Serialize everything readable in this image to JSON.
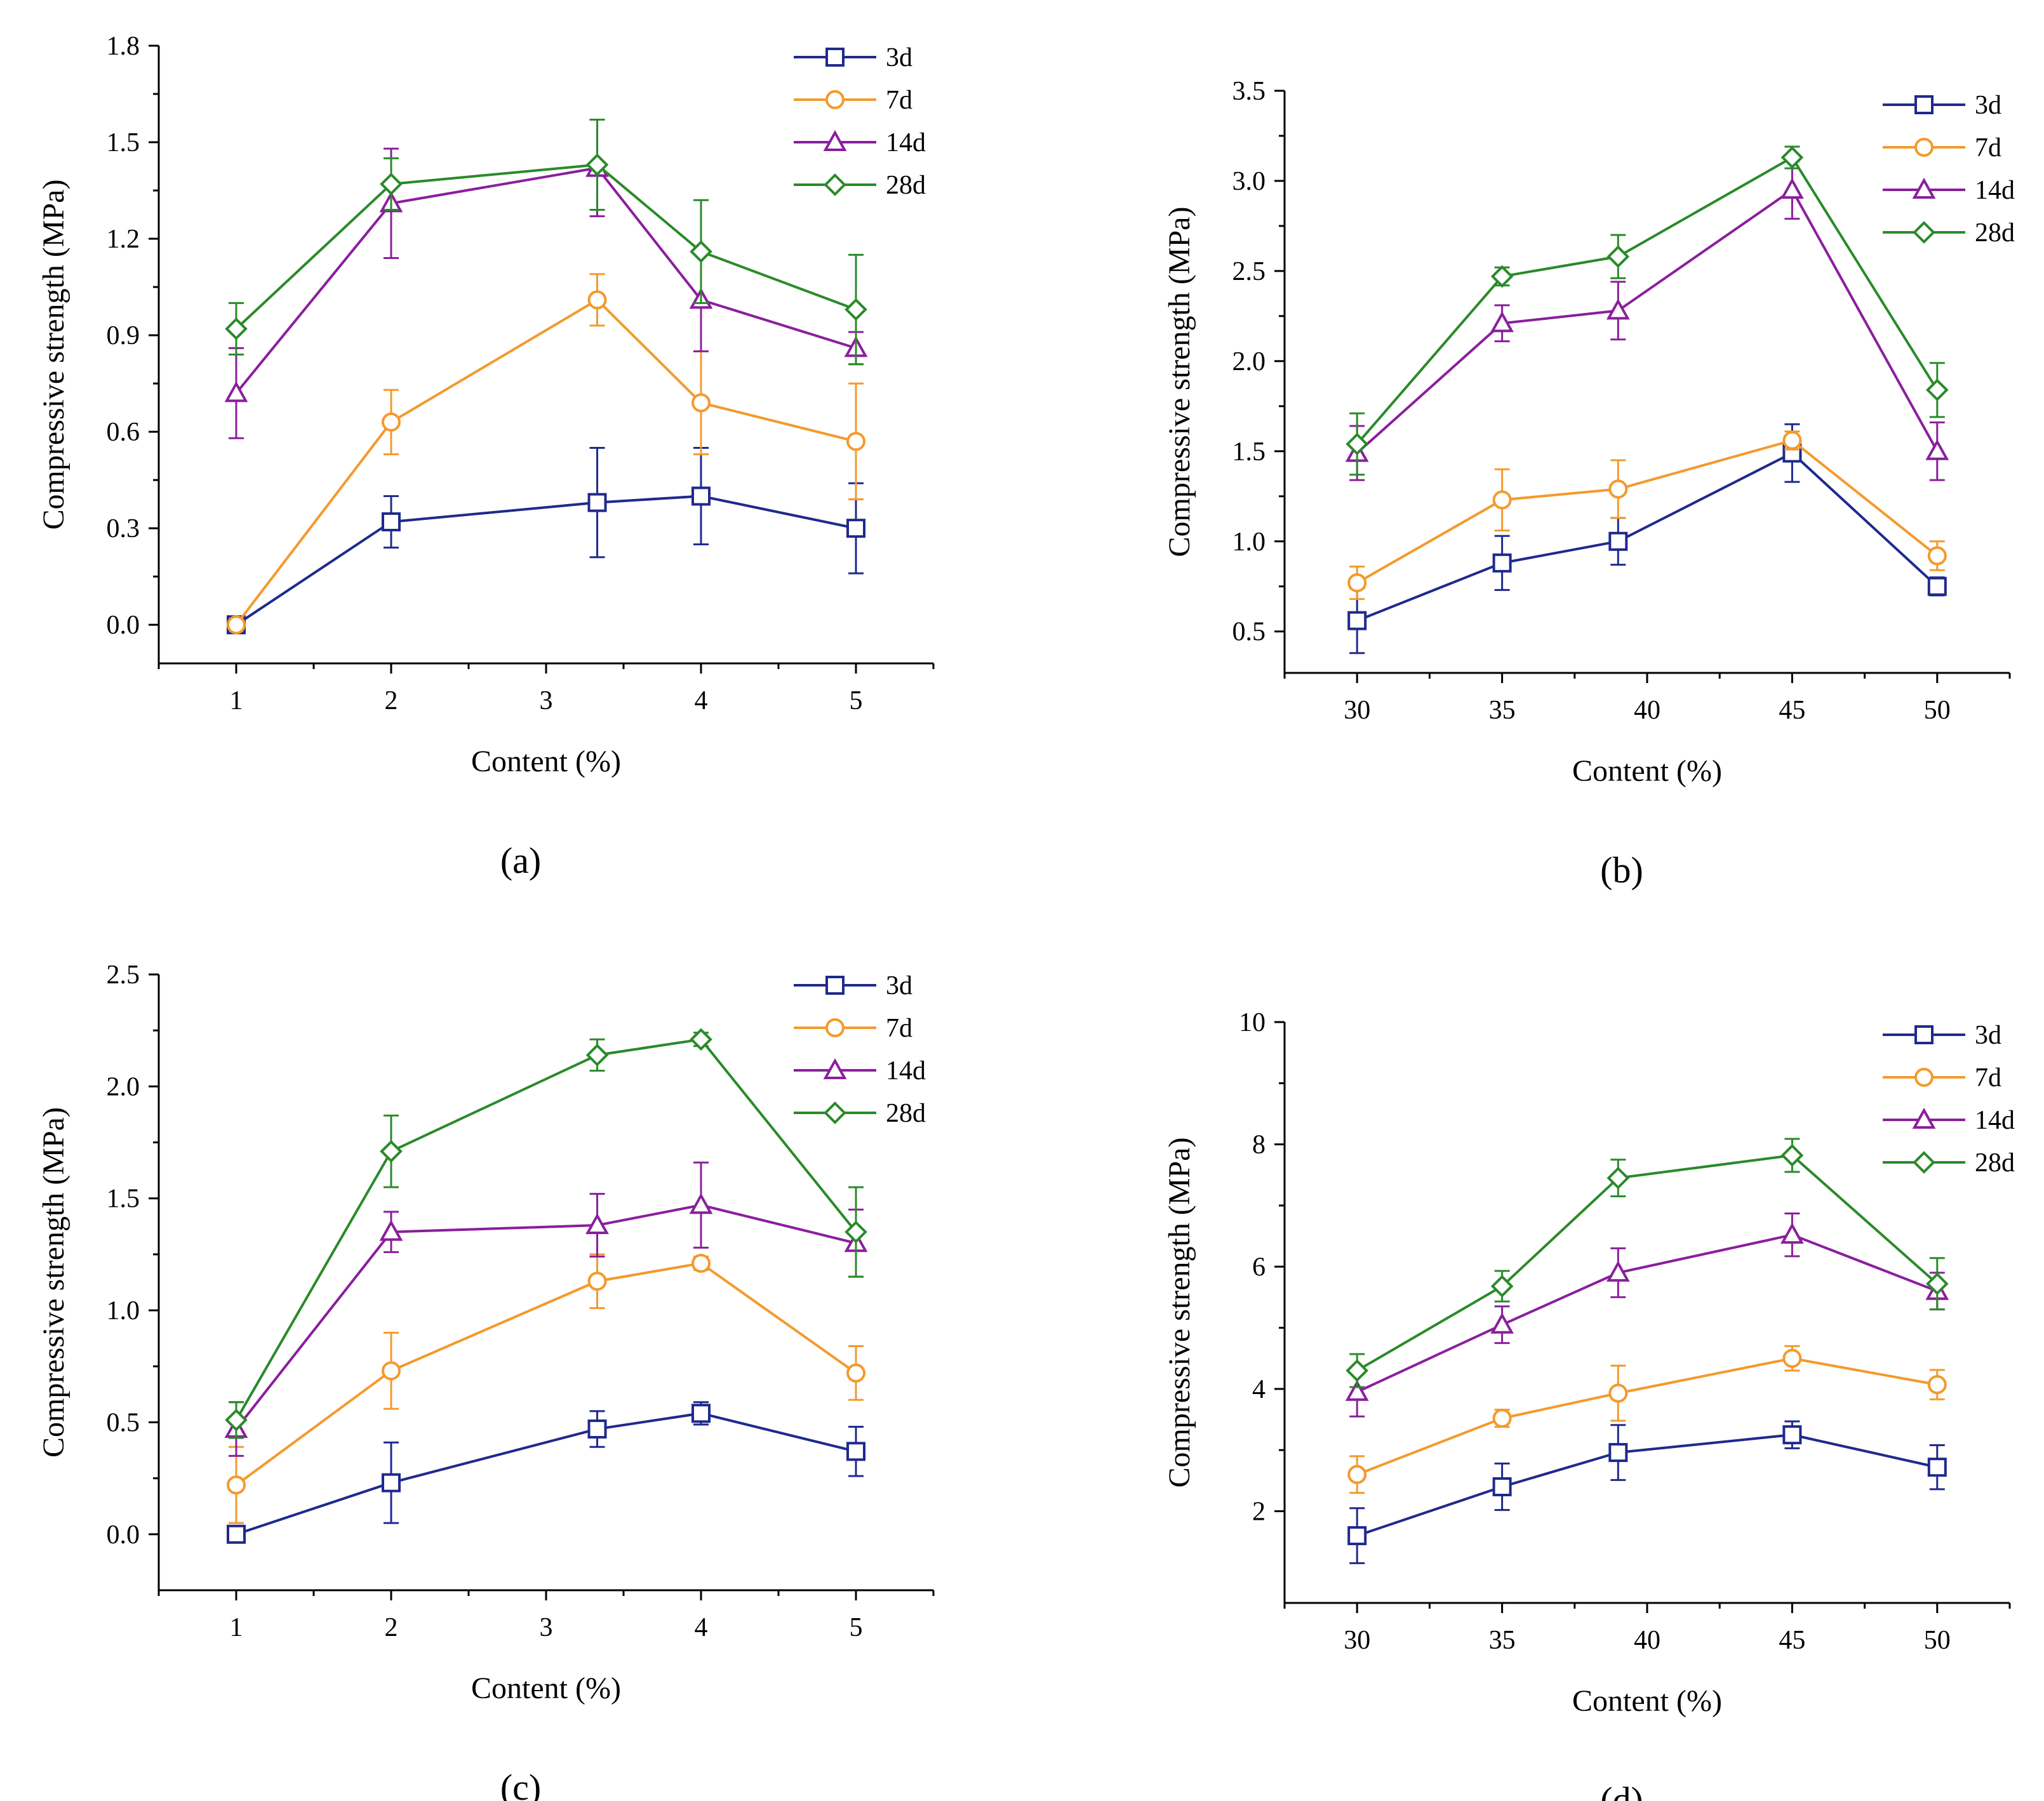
{
  "colors": {
    "3d": "#1f2a8c",
    "7d": "#f39a2c",
    "14d": "#8a1f9c",
    "28d": "#2a8a2a"
  },
  "chart_data": [
    {
      "type": "line",
      "panel": "(a)",
      "xlabel": "Content (%)",
      "ylabel": "Compressive strength (MPa)",
      "xlim": [
        0.5,
        5.5
      ],
      "ylim": [
        -0.12,
        1.8
      ],
      "xticks": [
        1,
        2,
        3,
        4,
        5
      ],
      "yticks": [
        0.0,
        0.3,
        0.6,
        0.9,
        1.2,
        1.5,
        1.8
      ],
      "ytick_labels": [
        "0.0",
        "0.3",
        "0.6",
        "0.9",
        "1.2",
        "1.5",
        "1.8"
      ],
      "xtick_labels": [
        "1",
        "2",
        "3",
        "4",
        "5"
      ],
      "x": [
        1,
        2,
        3.33,
        4,
        5
      ],
      "legend": "top-right",
      "series": [
        {
          "name": "3d",
          "marker": "square",
          "values": [
            0.0,
            0.32,
            0.38,
            0.4,
            0.3
          ],
          "errors": [
            0.0,
            0.08,
            0.17,
            0.15,
            0.14
          ]
        },
        {
          "name": "7d",
          "marker": "circle",
          "values": [
            0.0,
            0.63,
            1.01,
            0.69,
            0.57
          ],
          "errors": [
            0.0,
            0.1,
            0.08,
            0.16,
            0.18
          ]
        },
        {
          "name": "14d",
          "marker": "triangle",
          "values": [
            0.72,
            1.31,
            1.42,
            1.01,
            0.86
          ],
          "errors": [
            0.14,
            0.17,
            0.15,
            0.16,
            0.05
          ]
        },
        {
          "name": "28d",
          "marker": "diamond",
          "values": [
            0.92,
            1.37,
            1.43,
            1.16,
            0.98
          ],
          "errors": [
            0.08,
            0.08,
            0.14,
            0.16,
            0.17
          ]
        }
      ]
    },
    {
      "type": "line",
      "panel": "(b)",
      "xlabel": "Content (%)",
      "ylabel": "Compressive strength (MPa)",
      "xlim": [
        27.5,
        52.5
      ],
      "ylim": [
        0.27,
        3.5
      ],
      "xticks": [
        30,
        35,
        40,
        45,
        50
      ],
      "yticks": [
        0.5,
        1.0,
        1.5,
        2.0,
        2.5,
        3.0,
        3.5
      ],
      "ytick_labels": [
        "0.5",
        "1.0",
        "1.5",
        "2.0",
        "2.5",
        "3.0",
        "3.5"
      ],
      "xtick_labels": [
        "30",
        "35",
        "40",
        "45",
        "50"
      ],
      "x": [
        30,
        35,
        39,
        45,
        50
      ],
      "legend": "top-right",
      "series": [
        {
          "name": "3d",
          "marker": "square",
          "values": [
            0.56,
            0.88,
            1.0,
            1.49,
            0.75
          ],
          "errors": [
            0.18,
            0.15,
            0.13,
            0.16,
            0.05
          ]
        },
        {
          "name": "7d",
          "marker": "circle",
          "values": [
            0.77,
            1.23,
            1.29,
            1.56,
            0.92
          ],
          "errors": [
            0.09,
            0.17,
            0.16,
            0.05,
            0.08
          ]
        },
        {
          "name": "14d",
          "marker": "triangle",
          "values": [
            1.49,
            2.21,
            2.28,
            2.95,
            1.5
          ],
          "errors": [
            0.15,
            0.1,
            0.16,
            0.16,
            0.16
          ]
        },
        {
          "name": "28d",
          "marker": "diamond",
          "values": [
            1.54,
            2.47,
            2.58,
            3.13,
            1.84
          ],
          "errors": [
            0.17,
            0.05,
            0.12,
            0.06,
            0.15
          ]
        }
      ]
    },
    {
      "type": "line",
      "panel": "(c)",
      "xlabel": "Content (%)",
      "ylabel": "Compressive strength (MPa)",
      "xlim": [
        0.5,
        5.5
      ],
      "ylim": [
        -0.25,
        2.5
      ],
      "xticks": [
        1,
        2,
        3,
        4,
        5
      ],
      "yticks": [
        0.0,
        0.5,
        1.0,
        1.5,
        2.0,
        2.5
      ],
      "ytick_labels": [
        "0.0",
        "0.5",
        "1.0",
        "1.5",
        "2.0",
        "2.5"
      ],
      "xtick_labels": [
        "1",
        "2",
        "3",
        "4",
        "5"
      ],
      "x": [
        1,
        2,
        3.33,
        4,
        5
      ],
      "legend": "top-right",
      "series": [
        {
          "name": "3d",
          "marker": "square",
          "values": [
            0.0,
            0.23,
            0.47,
            0.54,
            0.37
          ],
          "errors": [
            0.0,
            0.18,
            0.08,
            0.05,
            0.11
          ]
        },
        {
          "name": "7d",
          "marker": "circle",
          "values": [
            0.22,
            0.73,
            1.13,
            1.21,
            0.72
          ],
          "errors": [
            0.17,
            0.17,
            0.12,
            0.03,
            0.12
          ]
        },
        {
          "name": "14d",
          "marker": "triangle",
          "values": [
            0.47,
            1.35,
            1.38,
            1.47,
            1.3
          ],
          "errors": [
            0.12,
            0.09,
            0.14,
            0.19,
            0.15
          ]
        },
        {
          "name": "28d",
          "marker": "diamond",
          "values": [
            0.51,
            1.71,
            2.14,
            2.21,
            1.35
          ],
          "errors": [
            0.08,
            0.16,
            0.07,
            0.03,
            0.2
          ]
        }
      ]
    },
    {
      "type": "line",
      "panel": "(d)",
      "xlabel": "Content (%)",
      "ylabel": "Compressive strength (MPa)",
      "xlim": [
        27.5,
        52.5
      ],
      "ylim": [
        0.5,
        10
      ],
      "xticks": [
        30,
        35,
        40,
        45,
        50
      ],
      "yticks": [
        2,
        4,
        6,
        8,
        10
      ],
      "ytick_labels": [
        "2",
        "4",
        "6",
        "8",
        "10"
      ],
      "xtick_labels": [
        "30",
        "35",
        "40",
        "45",
        "50"
      ],
      "x": [
        30,
        35,
        39,
        45,
        50
      ],
      "legend": "top-right",
      "series": [
        {
          "name": "3d",
          "marker": "square",
          "values": [
            1.6,
            2.4,
            2.96,
            3.25,
            2.72
          ],
          "errors": [
            0.45,
            0.38,
            0.45,
            0.22,
            0.36
          ]
        },
        {
          "name": "7d",
          "marker": "circle",
          "values": [
            2.6,
            3.52,
            3.93,
            4.5,
            4.07
          ],
          "errors": [
            0.3,
            0.14,
            0.45,
            0.2,
            0.24
          ]
        },
        {
          "name": "14d",
          "marker": "triangle",
          "values": [
            3.95,
            5.05,
            5.9,
            6.52,
            5.6
          ],
          "errors": [
            0.4,
            0.3,
            0.4,
            0.35,
            0.3
          ]
        },
        {
          "name": "28d",
          "marker": "diamond",
          "values": [
            4.3,
            5.68,
            7.45,
            7.82,
            5.72
          ],
          "errors": [
            0.27,
            0.25,
            0.3,
            0.27,
            0.42
          ]
        }
      ]
    }
  ]
}
